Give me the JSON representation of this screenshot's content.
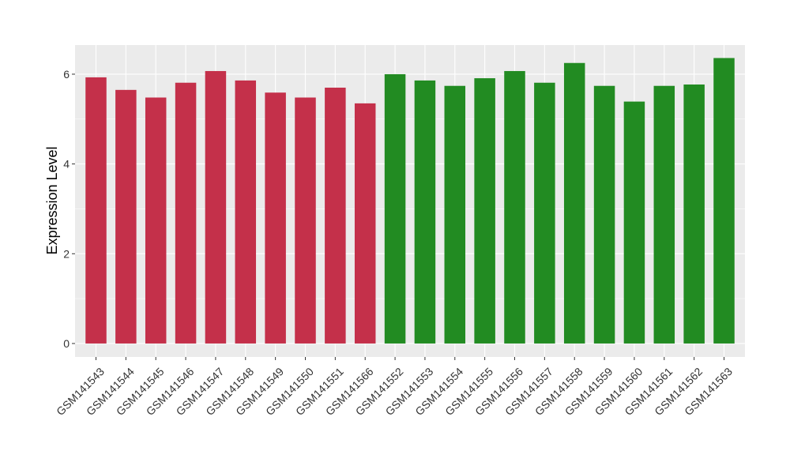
{
  "chart_data": {
    "type": "bar",
    "title": "",
    "xlabel": "",
    "ylabel": "Expression Level",
    "ylim": [
      -0.3,
      6.65
    ],
    "yticks": [
      0,
      2,
      4,
      6
    ],
    "grid": true,
    "categories": [
      "GSM141543",
      "GSM141544",
      "GSM141545",
      "GSM141546",
      "GSM141547",
      "GSM141548",
      "GSM141549",
      "GSM141550",
      "GSM141551",
      "GSM141566",
      "GSM141552",
      "GSM141553",
      "GSM141554",
      "GSM141555",
      "GSM141556",
      "GSM141557",
      "GSM141558",
      "GSM141559",
      "GSM141560",
      "GSM141561",
      "GSM141562",
      "GSM141563"
    ],
    "values": [
      5.93,
      5.65,
      5.48,
      5.81,
      6.07,
      5.86,
      5.59,
      5.48,
      5.7,
      5.35,
      6.0,
      5.86,
      5.74,
      5.91,
      6.07,
      5.81,
      6.25,
      5.74,
      5.39,
      5.74,
      5.77,
      6.36
    ],
    "group_of_bar": [
      0,
      0,
      0,
      0,
      0,
      0,
      0,
      0,
      0,
      0,
      1,
      1,
      1,
      1,
      1,
      1,
      1,
      1,
      1,
      1,
      1,
      1
    ],
    "colors": [
      "#c4304a",
      "#228b22"
    ],
    "panel_background": "#ebebeb",
    "gridline_color": "#ffffff"
  }
}
